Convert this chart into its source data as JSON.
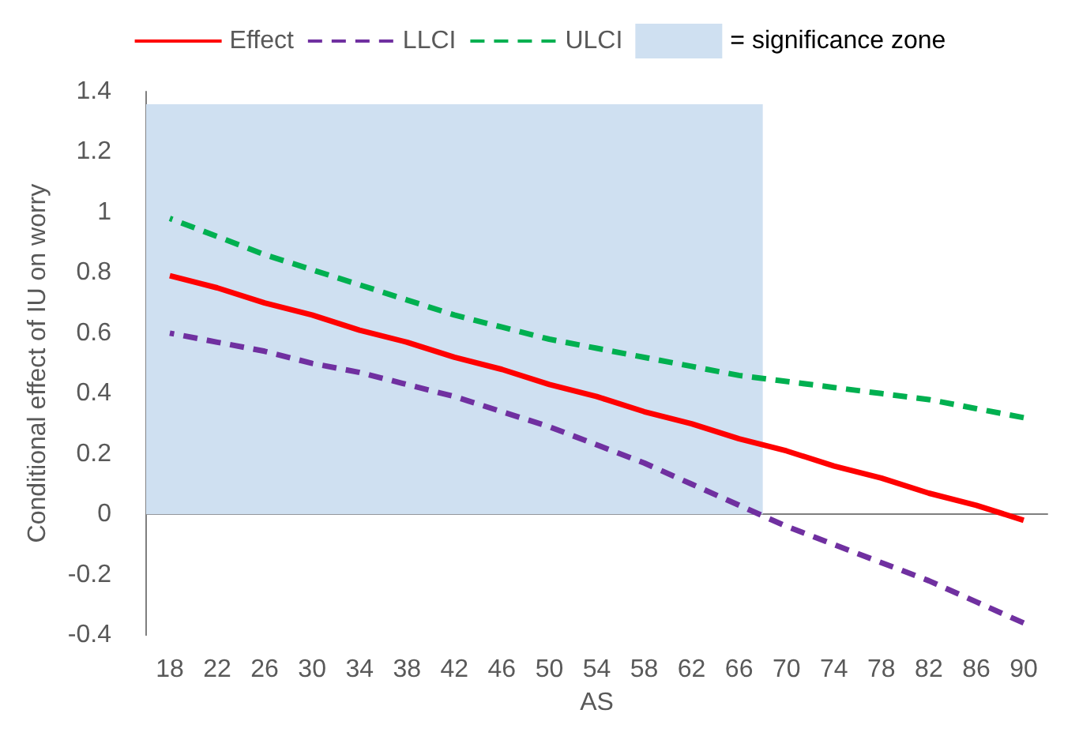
{
  "chart_data": {
    "type": "line",
    "xlabel": "AS",
    "ylabel": "Conditional effect of IU on worry",
    "x": [
      18,
      22,
      26,
      30,
      34,
      38,
      42,
      46,
      50,
      54,
      58,
      62,
      66,
      70,
      74,
      78,
      82,
      86,
      90
    ],
    "xlim": [
      16,
      92
    ],
    "xticks": [
      18,
      22,
      26,
      30,
      34,
      38,
      42,
      46,
      50,
      54,
      58,
      62,
      66,
      70,
      74,
      78,
      82,
      86,
      90
    ],
    "ylim": [
      -0.4,
      1.4
    ],
    "yticks": [
      -0.4,
      -0.2,
      0,
      0.2,
      0.4,
      0.6,
      0.8,
      1,
      1.2,
      1.4
    ],
    "series": [
      {
        "name": "Effect",
        "color": "#ff0000",
        "line_style": "solid",
        "values": [
          0.79,
          0.75,
          0.7,
          0.66,
          0.61,
          0.57,
          0.52,
          0.48,
          0.43,
          0.39,
          0.34,
          0.3,
          0.25,
          0.21,
          0.16,
          0.12,
          0.07,
          0.03,
          -0.02
        ]
      },
      {
        "name": "LLCI",
        "color": "#7030a0",
        "line_style": "dashed",
        "values": [
          0.6,
          0.57,
          0.54,
          0.5,
          0.47,
          0.43,
          0.39,
          0.34,
          0.29,
          0.23,
          0.17,
          0.1,
          0.03,
          -0.04,
          -0.1,
          -0.16,
          -0.22,
          -0.29,
          -0.36
        ]
      },
      {
        "name": "ULCI",
        "color": "#00b050",
        "line_style": "dashed",
        "values": [
          0.98,
          0.92,
          0.86,
          0.81,
          0.76,
          0.71,
          0.66,
          0.62,
          0.58,
          0.55,
          0.52,
          0.49,
          0.46,
          0.44,
          0.42,
          0.4,
          0.38,
          0.35,
          0.32
        ]
      }
    ],
    "bands": [
      {
        "axis": "x",
        "from": 16,
        "to": 68,
        "label": "= significance zone",
        "color": "#cfe0f1"
      }
    ],
    "marker": "none",
    "legend": "top"
  }
}
